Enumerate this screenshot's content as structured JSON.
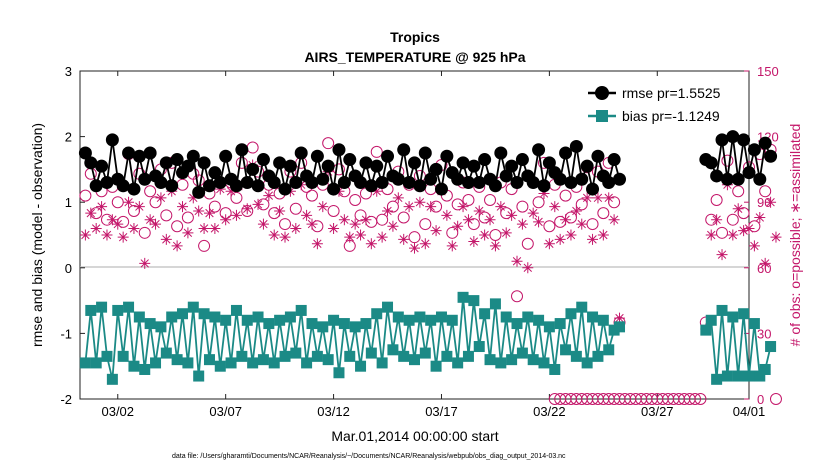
{
  "chart_data": {
    "type": "line",
    "title": "Tropics",
    "subtitle": "AIRS_TEMPERATURE @ 925 hPa",
    "xlabel": "Mar.01,2014 00:00:00 start",
    "ylabel_left": "rmse and bias (model - observation)",
    "ylabel_right": "# of obs: o=possible; ∗=assimilated",
    "footer": "data file: /Users/gharamti/Documents/NCAR/Reanalysis/~/Documents/NCAR/Reanalysis/webpub/obs_diag_output_2014-03.nc",
    "xlim": [
      0.25,
      31.25
    ],
    "ylim_left": [
      -2,
      3
    ],
    "ylim_right": [
      0,
      150
    ],
    "x_ticks": [
      {
        "value": 2,
        "label": "03/02"
      },
      {
        "value": 7,
        "label": "03/07"
      },
      {
        "value": 12,
        "label": "03/12"
      },
      {
        "value": 17,
        "label": "03/17"
      },
      {
        "value": 22,
        "label": "03/22"
      },
      {
        "value": 27,
        "label": "03/27"
      },
      {
        "value": 32,
        "label": "04/01"
      }
    ],
    "y_ticks_left": [
      "-2",
      "-1",
      "0",
      "1",
      "2",
      "3"
    ],
    "y_ticks_right": [
      "0",
      "30",
      "60",
      "90",
      "120",
      "150"
    ],
    "colors": {
      "rmse": "#000000",
      "bias": "#1b8a86",
      "counts": "#c4176a",
      "zero_line": "#bdbdbd"
    },
    "legend": {
      "position": "top-right",
      "rmse": "rmse pr=1.5525",
      "bias": "bias pr=-1.1249"
    },
    "series": [
      {
        "name": "rmse",
        "segments": [
          {
            "x_start": 0.5,
            "step": 0.25,
            "values": [
              1.75,
              1.6,
              1.25,
              1.55,
              1.3,
              1.95,
              1.35,
              1.25,
              1.75,
              1.2,
              1.7,
              1.35,
              1.75,
              1.4,
              1.3,
              1.6,
              1.25,
              1.65,
              1.45,
              1.55,
              1.7,
              1.15,
              1.6,
              1.25,
              1.45,
              1.3,
              1.7,
              1.35,
              1.25,
              1.8,
              1.3,
              1.5,
              1.25,
              1.65,
              1.4,
              1.3,
              1.6,
              1.2,
              1.55,
              1.3,
              1.75,
              1.4,
              1.3,
              1.7,
              1.35,
              1.55,
              1.2,
              1.8,
              1.3,
              1.65,
              1.4,
              1.3,
              1.6,
              1.25,
              1.55,
              1.3,
              1.7,
              1.4,
              1.35,
              1.8,
              1.3,
              1.6,
              1.25,
              1.75,
              1.35,
              1.5,
              1.2,
              1.7,
              1.45,
              1.35,
              1.6,
              1.3,
              1.55,
              1.3,
              1.65,
              1.35,
              1.25,
              1.75,
              1.4,
              1.55,
              1.3,
              1.65,
              1.4,
              1.3,
              1.8,
              1.25,
              1.6,
              1.45,
              1.35,
              1.75,
              1.3,
              1.85,
              1.35,
              1.55,
              1.2,
              1.7,
              1.4,
              1.3,
              1.65,
              1.35
            ]
          },
          {
            "x_start": 29.25,
            "step": 0.25,
            "values": [
              1.65,
              1.6,
              1.4,
              1.95,
              1.35,
              2.0,
              1.35,
              1.95,
              1.45,
              1.8,
              1.35,
              1.9,
              1.7
            ]
          }
        ]
      },
      {
        "name": "bias",
        "segments": [
          {
            "x_start": 0.5,
            "step": 0.25,
            "values": [
              -1.45,
              -0.65,
              -1.45,
              -0.6,
              -1.35,
              -1.7,
              -0.65,
              -1.35,
              -0.6,
              -1.5,
              -0.75,
              -1.55,
              -0.85,
              -1.45,
              -0.9,
              -1.3,
              -0.75,
              -1.4,
              -0.7,
              -1.45,
              -0.6,
              -1.65,
              -0.7,
              -1.4,
              -0.75,
              -1.5,
              -0.8,
              -1.45,
              -0.65,
              -1.35,
              -0.8,
              -1.45,
              -0.75,
              -1.4,
              -0.85,
              -1.45,
              -0.8,
              -1.35,
              -0.75,
              -1.3,
              -0.65,
              -1.45,
              -0.85,
              -1.35,
              -0.9,
              -1.4,
              -0.8,
              -1.6,
              -0.85,
              -1.35,
              -0.9,
              -1.5,
              -0.85,
              -1.3,
              -0.7,
              -1.45,
              -0.6,
              -1.25,
              -0.75,
              -1.35,
              -0.8,
              -1.4,
              -0.75,
              -1.3,
              -0.8,
              -1.5,
              -0.75,
              -1.35,
              -0.8,
              -1.45,
              -0.45,
              -1.35,
              -0.5,
              -1.2,
              -0.7,
              -1.4,
              -0.55,
              -1.45,
              -0.75,
              -1.4,
              -0.85,
              -1.3,
              -0.75,
              -1.4,
              -0.8,
              -1.45,
              -0.9,
              -1.55,
              -0.85,
              -1.25,
              -0.7,
              -1.35,
              -0.6,
              -1.45,
              -0.75,
              -1.35,
              -0.8,
              -1.25,
              -0.95,
              -0.9
            ]
          },
          {
            "x_start": 29.25,
            "step": 0.25,
            "values": [
              -0.95,
              -0.8,
              -1.7,
              -0.65,
              -1.65,
              -0.75,
              -1.65,
              -0.7,
              -1.65,
              -0.85,
              -1.65,
              -1.55,
              -1.2
            ]
          }
        ]
      },
      {
        "name": "possible_obs",
        "axis": "right",
        "segments": [
          {
            "x_start": 0.5,
            "step": 0.25,
            "values": [
              93,
              103,
              85,
              95,
              82,
              97,
              90,
              81,
              112,
              86,
              103,
              76,
              95,
              90,
              105,
              84,
              108,
              79,
              98,
              83,
              103,
              100,
              70,
              94,
              88,
              99,
              85,
              99,
              92,
              108,
              86,
              115,
              104,
              89,
              98,
              85,
              94,
              80,
              104,
              87,
              108,
              97,
              93,
              79,
              98,
              117,
              86,
              105,
              95,
              70,
              91,
              84,
              94,
              81,
              113,
              82,
              96,
              88,
              104,
              83,
              98,
              74,
              102,
              80,
              96,
              88,
              107,
              93,
              76,
              89,
              99,
              91,
              80,
              97,
              83,
              91,
              75,
              99,
              85,
              96,
              47,
              88,
              71,
              99,
              90,
              108,
              79,
              98,
              81,
              93,
              83,
              97,
              89,
              106,
              80,
              104,
              85,
              108,
              90,
              35
            ]
          },
          {
            "x_start": 22.25,
            "step": 0.25,
            "values": [
              0,
              0,
              0,
              0,
              0,
              0,
              0,
              0,
              0,
              0,
              0,
              0,
              0,
              0,
              0,
              0,
              0,
              0,
              0,
              0,
              0,
              0,
              0,
              0,
              0,
              0,
              0,
              0
            ]
          },
          {
            "x_start": 29.25,
            "step": 0.25,
            "values": [
              35,
              82,
              91,
              76,
              109,
              82,
              95,
              85,
              106,
              79,
              112,
              95,
              114,
              0
            ]
          }
        ]
      },
      {
        "name": "assimilated_obs",
        "axis": "right",
        "segments": [
          {
            "x_start": 0.5,
            "step": 0.25,
            "values": [
              75,
              85,
              78,
              88,
              75,
              82,
              80,
              74,
              90,
              78,
              88,
              62,
              82,
              80,
              92,
              73,
              95,
              70,
              88,
              76,
              92,
              86,
              78,
              85,
              78,
              96,
              82,
              95,
              84,
              98,
              87,
              107,
              89,
              80,
              93,
              75,
              86,
              74,
              95,
              78,
              98,
              84,
              80,
              71,
              88,
              104,
              78,
              95,
              82,
              74,
              80,
              75,
              82,
              71,
              95,
              74,
              86,
              79,
              92,
              73,
              88,
              69,
              90,
              71,
              88,
              77,
              95,
              84,
              70,
              79,
              88,
              82,
              72,
              86,
              75,
              82,
              70,
              88,
              76,
              84,
              63,
              80,
              60,
              85,
              81,
              94,
              71,
              88,
              73,
              82,
              75,
              86,
              80,
              92,
              73,
              92,
              75,
              92,
              82,
              37
            ]
          },
          {
            "x_start": 29.25,
            "step": 0.25,
            "values": [
              32,
              75,
              82,
              66,
              98,
              75,
              87,
              77,
              78,
              70,
              83,
              62,
              90,
              74
            ]
          }
        ]
      }
    ]
  }
}
